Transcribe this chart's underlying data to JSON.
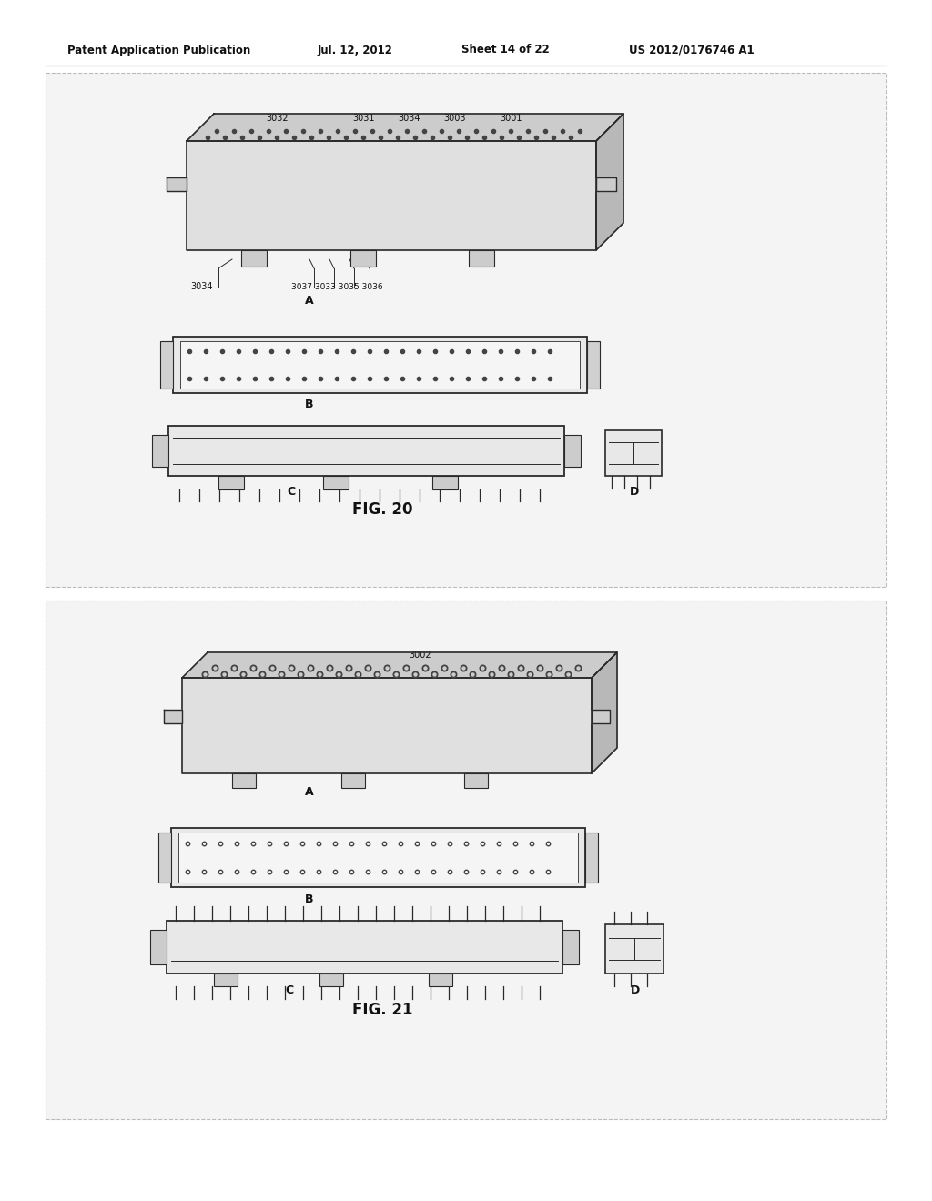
{
  "bg_color": "#ffffff",
  "page_bg": "#ffffff",
  "header_text": "Patent Application Publication",
  "header_date": "Jul. 12, 2012",
  "header_sheet": "Sheet 14 of 22",
  "header_patent": "US 2012/0176746 A1",
  "fig20_title": "FIG. 20",
  "fig21_title": "FIG. 21",
  "line_color": "#2a2a2a",
  "fill_light": "#e0e0e0",
  "fill_med": "#cccccc",
  "fill_dark": "#b8b8b8",
  "fill_white": "#f2f2f2",
  "dot_color": "#444444",
  "box_bg": "#efefef",
  "box_border": "#aaaaaa"
}
